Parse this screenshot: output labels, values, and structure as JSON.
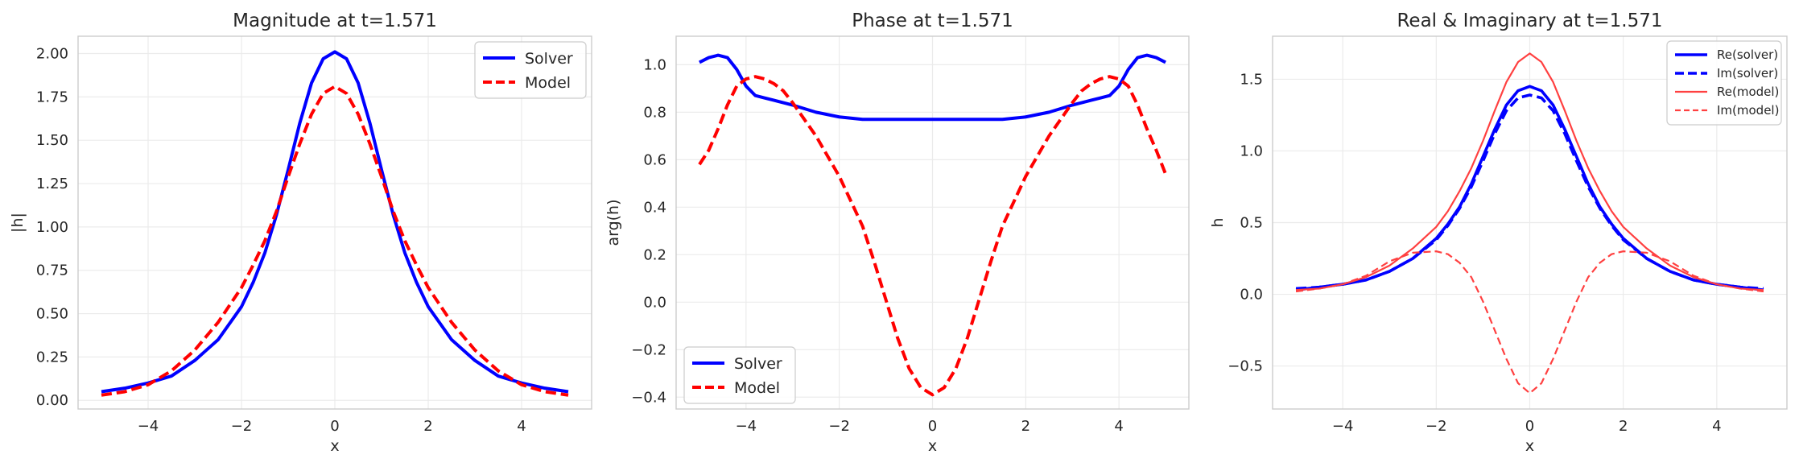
{
  "chart_data": [
    {
      "type": "line",
      "title": "Magnitude at t=1.571",
      "xlabel": "x",
      "ylabel": "|h|",
      "xlim": [
        -5.5,
        5.5
      ],
      "ylim": [
        -0.05,
        2.1
      ],
      "xticks": [
        -4,
        -2,
        0,
        2,
        4
      ],
      "xtick_labels": [
        "−4",
        "−2",
        "0",
        "2",
        "4"
      ],
      "yticks": [
        0,
        0.25,
        0.5,
        0.75,
        1.0,
        1.25,
        1.5,
        1.75,
        2.0
      ],
      "ytick_labels": [
        "0.00",
        "0.25",
        "0.50",
        "0.75",
        "1.00",
        "1.25",
        "1.50",
        "1.75",
        "2.00"
      ],
      "grid": true,
      "legend": "upper right",
      "x": [
        -5,
        -4.5,
        -4,
        -3.5,
        -3,
        -2.5,
        -2,
        -1.75,
        -1.5,
        -1.25,
        -1,
        -0.75,
        -0.5,
        -0.25,
        0,
        0.25,
        0.5,
        0.75,
        1,
        1.25,
        1.5,
        1.75,
        2,
        2.5,
        3,
        3.5,
        4,
        4.5,
        5
      ],
      "series": [
        {
          "name": "Solver",
          "color": "#0000ff",
          "style": "solid",
          "values": [
            0.05,
            0.07,
            0.1,
            0.14,
            0.23,
            0.35,
            0.54,
            0.68,
            0.85,
            1.07,
            1.33,
            1.6,
            1.83,
            1.97,
            2.01,
            1.97,
            1.83,
            1.6,
            1.33,
            1.07,
            0.85,
            0.68,
            0.54,
            0.35,
            0.23,
            0.14,
            0.1,
            0.07,
            0.05
          ]
        },
        {
          "name": "Model",
          "color": "#ff0000",
          "style": "dashed",
          "values": [
            0.03,
            0.05,
            0.09,
            0.17,
            0.29,
            0.45,
            0.65,
            0.78,
            0.92,
            1.09,
            1.29,
            1.48,
            1.65,
            1.77,
            1.81,
            1.77,
            1.65,
            1.48,
            1.29,
            1.09,
            0.92,
            0.78,
            0.65,
            0.45,
            0.29,
            0.17,
            0.09,
            0.05,
            0.03
          ]
        }
      ]
    },
    {
      "type": "line",
      "title": "Phase at t=1.571",
      "xlabel": "x",
      "ylabel": "arg(h)",
      "xlim": [
        -5.5,
        5.5
      ],
      "ylim": [
        -0.45,
        1.12
      ],
      "xticks": [
        -4,
        -2,
        0,
        2,
        4
      ],
      "xtick_labels": [
        "−4",
        "−2",
        "0",
        "2",
        "4"
      ],
      "yticks": [
        -0.4,
        -0.2,
        0,
        0.2,
        0.4,
        0.6,
        0.8,
        1.0
      ],
      "ytick_labels": [
        "−0.4",
        "−0.2",
        "0.0",
        "0.2",
        "0.4",
        "0.6",
        "0.8",
        "1.0"
      ],
      "grid": true,
      "legend": "lower left",
      "x": [
        -5,
        -4.8,
        -4.6,
        -4.4,
        -4.2,
        -4,
        -3.8,
        -3.6,
        -3.4,
        -3.2,
        -3,
        -2.5,
        -2,
        -1.5,
        -1.25,
        -1,
        -0.75,
        -0.5,
        -0.25,
        0,
        0.25,
        0.5,
        0.75,
        1,
        1.25,
        1.5,
        2,
        2.5,
        3,
        3.2,
        3.4,
        3.6,
        3.8,
        4,
        4.2,
        4.4,
        4.6,
        4.8,
        5
      ],
      "series": [
        {
          "name": "Solver",
          "color": "#0000ff",
          "style": "solid",
          "values": [
            1.01,
            1.03,
            1.04,
            1.03,
            0.98,
            0.91,
            0.87,
            0.86,
            0.85,
            0.84,
            0.83,
            0.8,
            0.78,
            0.77,
            0.77,
            0.77,
            0.77,
            0.77,
            0.77,
            0.77,
            0.77,
            0.77,
            0.77,
            0.77,
            0.77,
            0.77,
            0.78,
            0.8,
            0.83,
            0.84,
            0.85,
            0.86,
            0.87,
            0.91,
            0.98,
            1.03,
            1.04,
            1.03,
            1.01
          ]
        },
        {
          "name": "Model",
          "color": "#ff0000",
          "style": "dashed",
          "values": [
            0.58,
            0.64,
            0.73,
            0.83,
            0.91,
            0.94,
            0.95,
            0.94,
            0.92,
            0.89,
            0.84,
            0.7,
            0.53,
            0.32,
            0.17,
            0.01,
            -0.15,
            -0.28,
            -0.36,
            -0.39,
            -0.36,
            -0.28,
            -0.15,
            0.01,
            0.17,
            0.32,
            0.53,
            0.7,
            0.84,
            0.89,
            0.92,
            0.94,
            0.95,
            0.94,
            0.91,
            0.83,
            0.73,
            0.64,
            0.54
          ]
        }
      ]
    },
    {
      "type": "line",
      "title": "Real & Imaginary at t=1.571",
      "xlabel": "x",
      "ylabel": "h",
      "xlim": [
        -5.5,
        5.5
      ],
      "ylim": [
        -0.8,
        1.8
      ],
      "xticks": [
        -4,
        -2,
        0,
        2,
        4
      ],
      "xtick_labels": [
        "−4",
        "−2",
        "0",
        "2",
        "4"
      ],
      "yticks": [
        -0.5,
        0,
        0.5,
        1.0,
        1.5
      ],
      "ytick_labels": [
        "−0.5",
        "0.0",
        "0.5",
        "1.0",
        "1.5"
      ],
      "grid": true,
      "legend": "upper right",
      "x": [
        -5,
        -4.5,
        -4,
        -3.5,
        -3,
        -2.5,
        -2,
        -1.75,
        -1.5,
        -1.25,
        -1,
        -0.75,
        -0.5,
        -0.25,
        0,
        0.25,
        0.5,
        0.75,
        1,
        1.25,
        1.5,
        1.75,
        2,
        2.5,
        3,
        3.5,
        4,
        4.5,
        5
      ],
      "series": [
        {
          "name": "Re(solver)",
          "color": "#0000ff",
          "style": "solid",
          "width": "thick",
          "values": [
            0.03,
            0.05,
            0.07,
            0.1,
            0.16,
            0.25,
            0.39,
            0.49,
            0.61,
            0.77,
            0.96,
            1.15,
            1.32,
            1.42,
            1.45,
            1.42,
            1.32,
            1.15,
            0.96,
            0.77,
            0.61,
            0.49,
            0.39,
            0.25,
            0.16,
            0.1,
            0.07,
            0.05,
            0.03
          ]
        },
        {
          "name": "Im(solver)",
          "color": "#0000ff",
          "style": "dashed",
          "width": "thick",
          "values": [
            0.04,
            0.05,
            0.07,
            0.1,
            0.16,
            0.25,
            0.38,
            0.48,
            0.6,
            0.75,
            0.93,
            1.12,
            1.28,
            1.37,
            1.39,
            1.37,
            1.28,
            1.12,
            0.93,
            0.75,
            0.6,
            0.48,
            0.38,
            0.25,
            0.16,
            0.1,
            0.07,
            0.05,
            0.04
          ]
        },
        {
          "name": "Re(model)",
          "color": "#ff4040",
          "style": "solid",
          "width": "thin",
          "values": [
            0.03,
            0.04,
            0.07,
            0.12,
            0.2,
            0.32,
            0.47,
            0.58,
            0.72,
            0.88,
            1.07,
            1.28,
            1.48,
            1.62,
            1.68,
            1.62,
            1.48,
            1.28,
            1.07,
            0.88,
            0.72,
            0.58,
            0.47,
            0.32,
            0.2,
            0.12,
            0.07,
            0.04,
            0.03
          ]
        },
        {
          "name": "Im(model)",
          "color": "#ff4040",
          "style": "dashed",
          "width": "thin",
          "values": [
            0.02,
            0.04,
            0.07,
            0.13,
            0.23,
            0.29,
            0.3,
            0.28,
            0.22,
            0.12,
            -0.05,
            -0.25,
            -0.45,
            -0.62,
            -0.69,
            -0.62,
            -0.45,
            -0.25,
            -0.05,
            0.12,
            0.22,
            0.28,
            0.3,
            0.29,
            0.23,
            0.13,
            0.07,
            0.04,
            0.02
          ]
        }
      ]
    }
  ]
}
